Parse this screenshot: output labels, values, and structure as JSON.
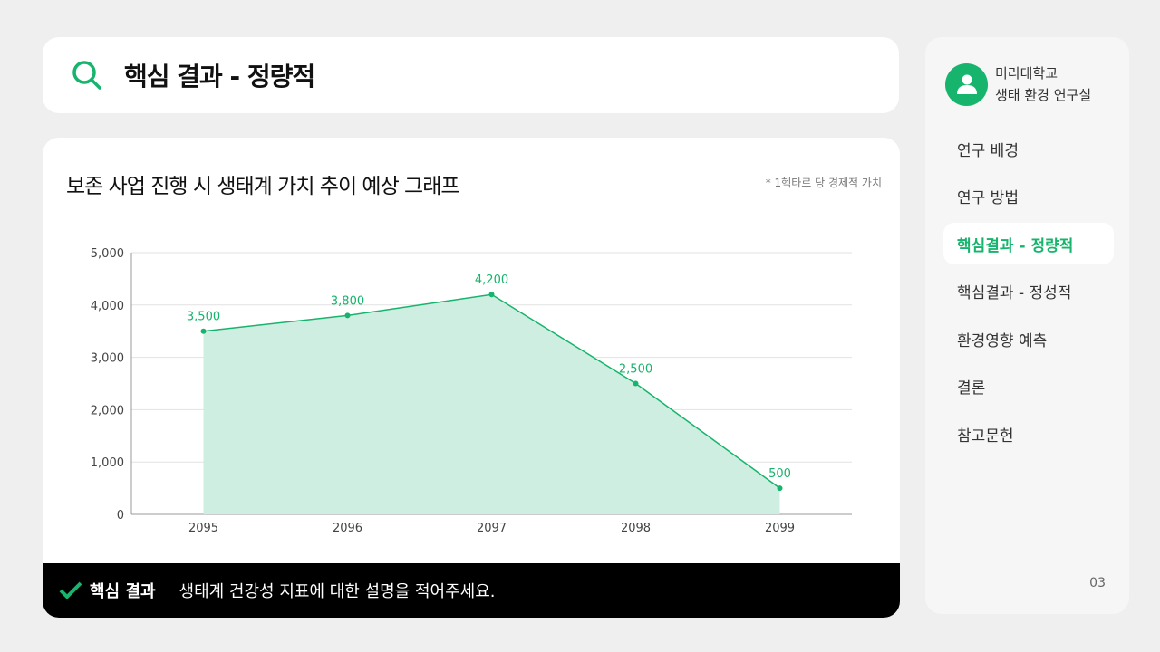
{
  "header": {
    "title": "핵심 결과 - 정량적",
    "icon": "search-icon"
  },
  "card": {
    "title": "보존 사업 진행 시 생태계 가치 추이 예상 그래프",
    "note": "* 1헥타르 당 경제적 가치"
  },
  "chart_data": {
    "type": "area",
    "categories": [
      "2095",
      "2096",
      "2097",
      "2098",
      "2099"
    ],
    "values": [
      3500,
      3800,
      4200,
      2500,
      500
    ],
    "data_labels": [
      "3,500",
      "3,800",
      "4,200",
      "2,500",
      "500"
    ],
    "ylim": [
      0,
      5000
    ],
    "yticks": [
      0,
      1000,
      2000,
      3000,
      4000,
      5000
    ],
    "ytick_labels": [
      "0",
      "1,000",
      "2,000",
      "3,000",
      "4,000",
      "5,000"
    ],
    "grid": true,
    "colors": {
      "line": "#16b46c",
      "fill": "#cdeee0"
    }
  },
  "footer": {
    "label": "핵심 결과",
    "text": "생태계 건강성 지표에 대한 설명을 적어주세요."
  },
  "sidebar": {
    "org": "미리대학교",
    "lab": "생태 환경 연구실",
    "items": [
      {
        "label": "연구 배경"
      },
      {
        "label": "연구 방법"
      },
      {
        "label": "핵심결과 - 정량적",
        "active": true
      },
      {
        "label": "핵심결과 - 정성적"
      },
      {
        "label": "환경영향 예측"
      },
      {
        "label": "결론"
      },
      {
        "label": "참고문헌"
      }
    ],
    "page": "03"
  }
}
